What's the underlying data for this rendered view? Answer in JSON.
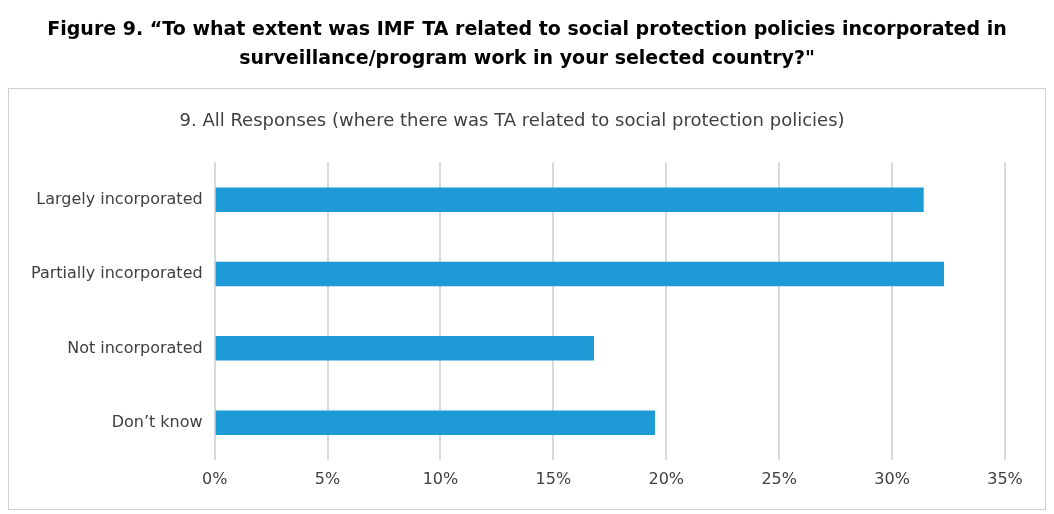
{
  "chart_data": {
    "type": "bar",
    "orientation": "horizontal",
    "title": "Figure 9. “To what extent was IMF TA related to social protection policies incorporated in surveillance/program work in your selected country?\"",
    "subtitle": "9. All Responses (where there was TA related to social protection policies)",
    "categories": [
      "Largely incorporated",
      "Partially incorporated",
      "Not incorporated",
      "Don’t know"
    ],
    "values": [
      31.4,
      32.3,
      16.8,
      19.5
    ],
    "color": "#1e9bd7",
    "xlim": [
      0,
      35
    ],
    "xticks": [
      {
        "value": 0,
        "label": "0%"
      },
      {
        "value": 5,
        "label": "5%"
      },
      {
        "value": 10,
        "label": "10%"
      },
      {
        "value": 15,
        "label": "15%"
      },
      {
        "value": 20,
        "label": "20%"
      },
      {
        "value": 25,
        "label": "25%"
      },
      {
        "value": 30,
        "label": "30%"
      },
      {
        "value": 35,
        "label": "35%"
      }
    ],
    "grid": "x",
    "legend": false
  }
}
